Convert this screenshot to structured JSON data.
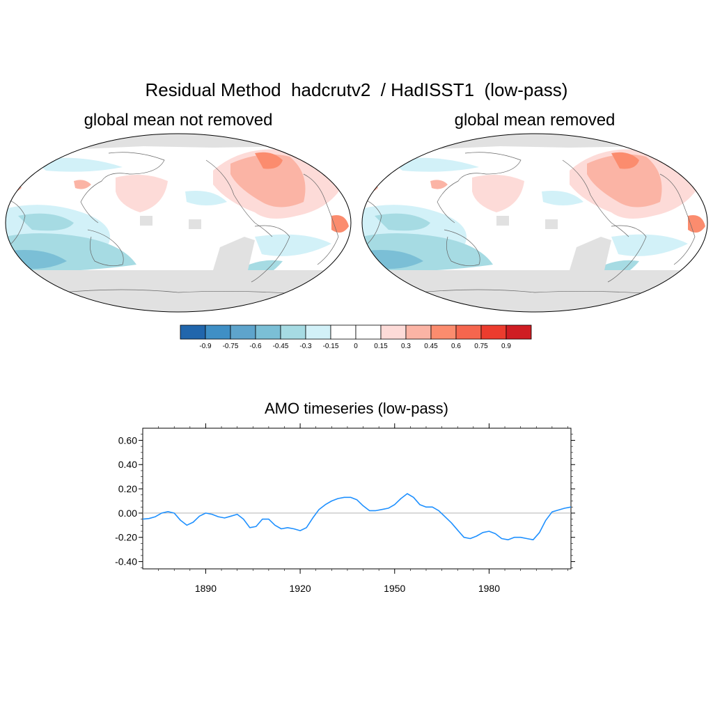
{
  "title": "Residual Method  hadcrutv2  / HadISST1  (low-pass)",
  "maps": [
    {
      "title": "global mean not removed"
    },
    {
      "title": "global mean removed"
    }
  ],
  "colorbar": {
    "labels": [
      "-0.9",
      "-0.75",
      "-0.6",
      "-0.45",
      "-0.3",
      "-0.15",
      "0",
      "0.15",
      "0.3",
      "0.45",
      "0.6",
      "0.75",
      "0.9"
    ],
    "colors": [
      "#2166ac",
      "#3f8fc5",
      "#5ea4cc",
      "#7bbfd6",
      "#a6dbe3",
      "#d2f1f8",
      "#ffffff",
      "#ffffff",
      "#fddbd8",
      "#fbb4a5",
      "#fb8c6e",
      "#f5664e",
      "#ec3c2e",
      "#cf1d23"
    ]
  },
  "colors": {
    "land_missing": "#e1e1e1",
    "ocean_neutral": "#ffffff",
    "coast": "#666666",
    "line": "#1e90ff",
    "zero_line": "#b3b3b3"
  },
  "chart_data": {
    "type": "line",
    "title": "AMO timeseries (low-pass)",
    "xlabel": "",
    "ylabel": "",
    "xlim": [
      1870,
      2006
    ],
    "ylim": [
      -0.46,
      0.7
    ],
    "xticks": [
      1890,
      1920,
      1950,
      1980
    ],
    "xtick_labels": [
      "1890",
      "1920",
      "1950",
      "1980"
    ],
    "yticks": [
      0.6,
      0.4,
      0.2,
      0.0,
      -0.2,
      -0.4
    ],
    "ytick_labels": [
      "0.60",
      "0.40",
      "0.20",
      "0.00",
      "-0.20",
      "-0.40"
    ],
    "series": [
      {
        "name": "AMO",
        "x": [
          1870,
          1872,
          1874,
          1876,
          1878,
          1880,
          1882,
          1884,
          1886,
          1888,
          1890,
          1892,
          1894,
          1896,
          1898,
          1900,
          1902,
          1904,
          1906,
          1908,
          1910,
          1912,
          1914,
          1916,
          1918,
          1920,
          1922,
          1924,
          1926,
          1928,
          1930,
          1932,
          1934,
          1936,
          1938,
          1940,
          1942,
          1944,
          1946,
          1948,
          1950,
          1952,
          1954,
          1956,
          1958,
          1960,
          1962,
          1964,
          1966,
          1968,
          1970,
          1972,
          1974,
          1976,
          1978,
          1980,
          1982,
          1984,
          1986,
          1988,
          1990,
          1992,
          1994,
          1996,
          1998,
          2000,
          2002,
          2004,
          2006
        ],
        "y": [
          -0.05,
          -0.045,
          -0.03,
          0.0,
          0.012,
          0.0,
          -0.06,
          -0.1,
          -0.075,
          -0.025,
          0.0,
          -0.01,
          -0.03,
          -0.04,
          -0.025,
          -0.01,
          -0.05,
          -0.12,
          -0.11,
          -0.05,
          -0.05,
          -0.1,
          -0.13,
          -0.12,
          -0.13,
          -0.145,
          -0.12,
          -0.04,
          0.03,
          0.07,
          0.1,
          0.12,
          0.13,
          0.13,
          0.11,
          0.06,
          0.02,
          0.02,
          0.03,
          0.04,
          0.07,
          0.12,
          0.16,
          0.13,
          0.07,
          0.05,
          0.05,
          0.02,
          -0.03,
          -0.08,
          -0.14,
          -0.2,
          -0.21,
          -0.19,
          -0.16,
          -0.15,
          -0.17,
          -0.21,
          -0.22,
          -0.2,
          -0.2,
          -0.21,
          -0.22,
          -0.16,
          -0.06,
          0.01,
          0.025,
          0.04,
          0.05
        ]
      }
    ]
  }
}
